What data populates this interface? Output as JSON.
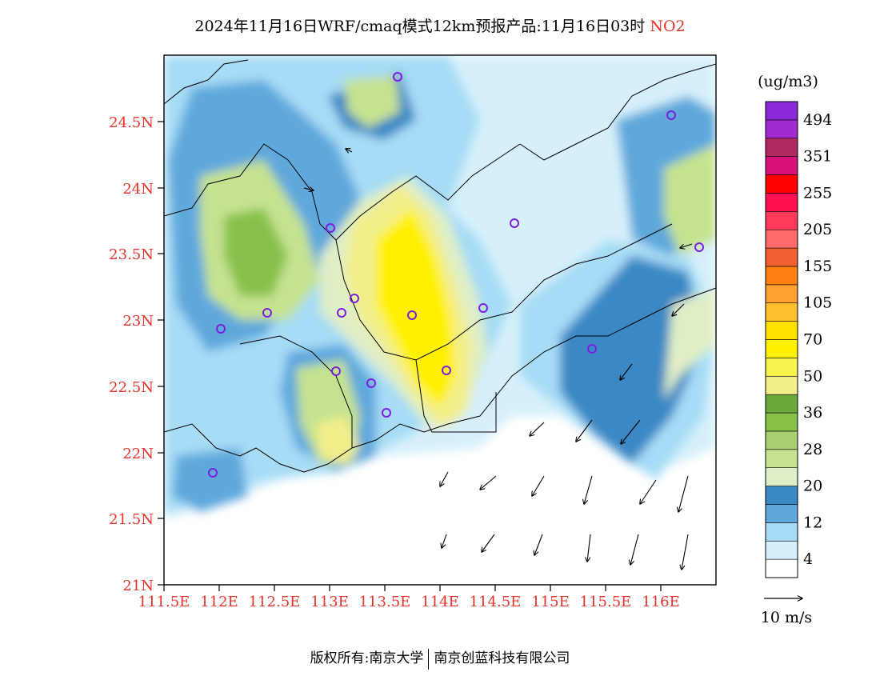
{
  "title": {
    "main": "2024年11月16日WRF/cmaq模式12km预报产品:11月16日03时",
    "species": "NO2"
  },
  "footer": {
    "left": "版权所有:南京大学",
    "right": "南京创蓝科技有限公司"
  },
  "map": {
    "lon_ticks": [
      "111.5E",
      "112E",
      "112.5E",
      "113E",
      "113.5E",
      "114E",
      "114.5E",
      "115E",
      "115.5E",
      "116E"
    ],
    "lat_ticks": [
      "21N",
      "21.5N",
      "22N",
      "22.5N",
      "23N",
      "23.5N",
      "24N",
      "24.5N"
    ],
    "lon_range": [
      111.5,
      116.5
    ],
    "lat_range": [
      21.0,
      25.0
    ],
    "sites_icon": "station-circle-icon",
    "wind_icon": "wind-arrow-icon"
  },
  "legend": {
    "unit": "(ug/m3)",
    "colors": [
      "#ffffff",
      "#d6f0fb",
      "#a6dcf5",
      "#5fa8dc",
      "#3a88c4",
      "#dfeec6",
      "#c6e290",
      "#a8d070",
      "#88c048",
      "#6aa83a",
      "#f2ef8a",
      "#f8f24c",
      "#fff000",
      "#ffe200",
      "#ffc030",
      "#ffa030",
      "#ff8010",
      "#f06030",
      "#ff6a6a",
      "#ff3a5a",
      "#ff1050",
      "#ff0000",
      "#d81078",
      "#b02860",
      "#a02ad0",
      "#8a28d8"
    ],
    "labels": [
      "4",
      "12",
      "20",
      "28",
      "36",
      "50",
      "70",
      "105",
      "155",
      "205",
      "255",
      "351",
      "494"
    ],
    "ref_vector": "10 m/s"
  }
}
